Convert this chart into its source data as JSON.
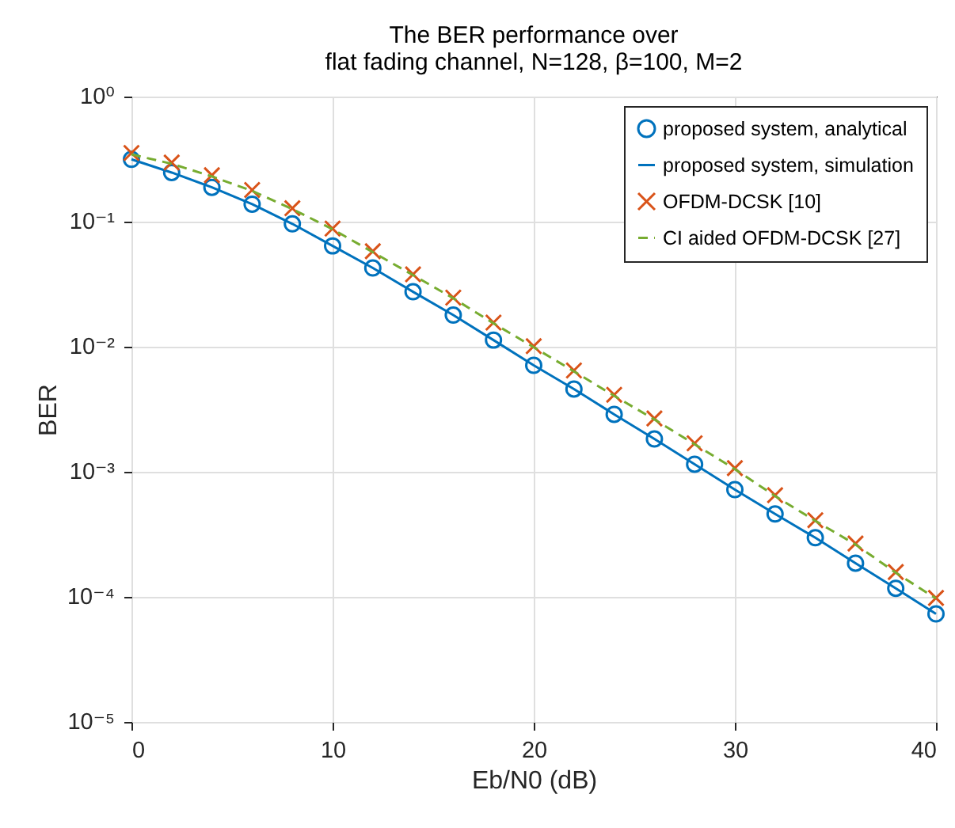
{
  "chart_data": {
    "type": "line",
    "title": "The BER performance over\nflat fading channel, N=128, β=100, M=2",
    "xlabel": "Eb/N0 (dB)",
    "ylabel": "BER",
    "x": [
      0,
      2,
      4,
      6,
      8,
      10,
      12,
      14,
      16,
      18,
      20,
      22,
      24,
      26,
      28,
      30,
      32,
      34,
      36,
      38,
      40
    ],
    "series": [
      {
        "name": "proposed system, analytical",
        "type": "scatter",
        "marker": "circle",
        "color": "#0072bd",
        "values": [
          0.315,
          0.247,
          0.188,
          0.138,
          0.096,
          0.064,
          0.0426,
          0.0275,
          0.0179,
          0.0113,
          0.0071,
          0.00459,
          0.00288,
          0.00183,
          0.00115,
          0.00072,
          0.00046,
          0.000297,
          0.000186,
          0.000117,
          7.3e-05
        ]
      },
      {
        "name": "proposed system, simulation",
        "line_style": "solid",
        "color": "#0072bd",
        "values": [
          0.315,
          0.247,
          0.188,
          0.138,
          0.096,
          0.064,
          0.0426,
          0.0275,
          0.0179,
          0.0113,
          0.0071,
          0.00459,
          0.00288,
          0.00183,
          0.00115,
          0.00072,
          0.00046,
          0.000297,
          0.000186,
          0.000117,
          7.3e-05
        ]
      },
      {
        "name": "OFDM-DCSK [10]",
        "type": "scatter",
        "marker": "cross",
        "color": "#d95319",
        "values": [
          0.354,
          0.297,
          0.235,
          0.179,
          0.128,
          0.088,
          0.058,
          0.0379,
          0.0247,
          0.0156,
          0.0101,
          0.00646,
          0.00413,
          0.00267,
          0.00169,
          0.00107,
          0.00065,
          0.00041,
          0.000267,
          0.000158,
          9.8e-05
        ]
      },
      {
        "name": "CI aided OFDM-DCSK [27]",
        "line_style": "dashed",
        "color": "#77ac30",
        "values": [
          0.345,
          0.29,
          0.23,
          0.176,
          0.126,
          0.087,
          0.057,
          0.0374,
          0.0244,
          0.0154,
          0.0099,
          0.00635,
          0.00405,
          0.00262,
          0.00166,
          0.00105,
          0.00064,
          0.000405,
          0.000262,
          0.000156,
          9.7e-05
        ]
      }
    ],
    "log": "y",
    "xlim": [
      0,
      40
    ],
    "xticks": [
      0,
      10,
      20,
      30,
      40
    ],
    "ylim": [
      1e-05,
      1
    ],
    "yticks": [
      {
        "value": 1e-05,
        "label": "10⁻⁵"
      },
      {
        "value": 0.0001,
        "label": "10⁻⁴"
      },
      {
        "value": 0.001,
        "label": "10⁻³"
      },
      {
        "value": 0.01,
        "label": "10⁻²"
      },
      {
        "value": 0.1,
        "label": "10⁻¹"
      },
      {
        "value": 1,
        "label": "10⁰"
      }
    ],
    "grid": true,
    "legend": "top right"
  }
}
